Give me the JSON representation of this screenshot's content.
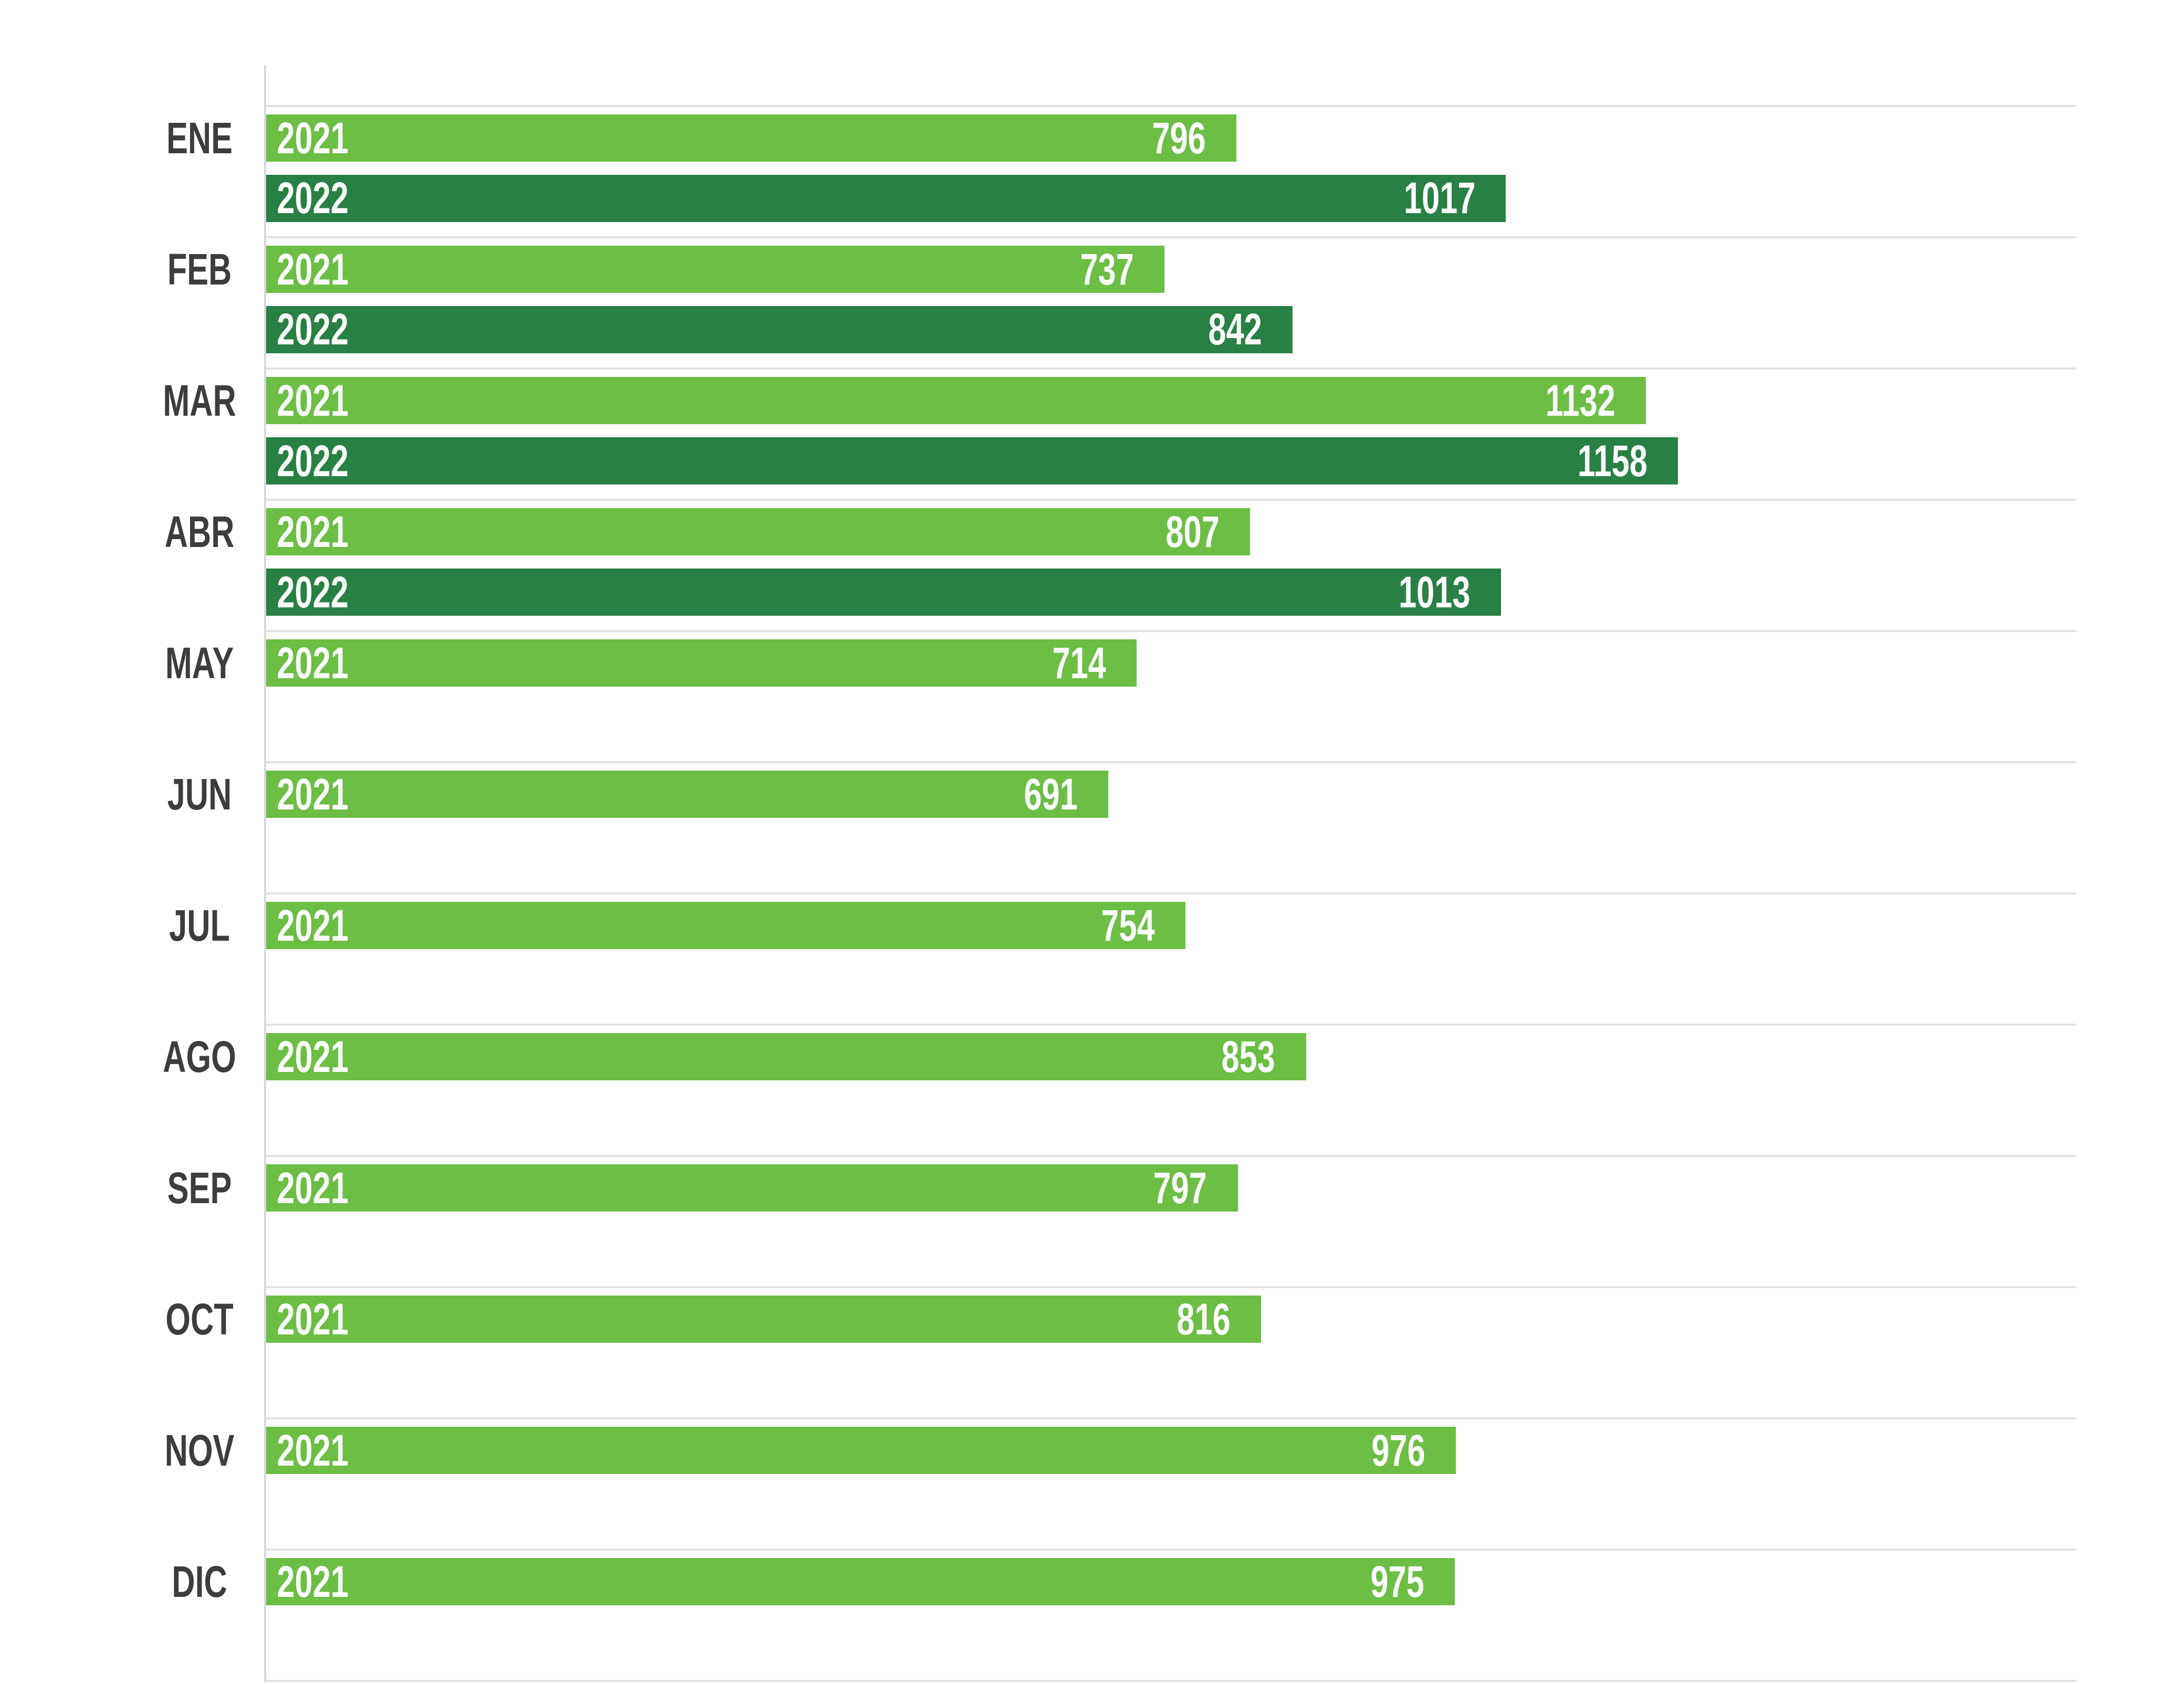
{
  "chart_data": {
    "type": "bar",
    "orientation": "horizontal",
    "title": "",
    "xlabel": "",
    "ylabel": "",
    "categories": [
      "ENE",
      "FEB",
      "MAR",
      "ABR",
      "MAY",
      "JUN",
      "JUL",
      "AGO",
      "SEP",
      "OCT",
      "NOV",
      "DIC"
    ],
    "series": [
      {
        "name": "2021",
        "color": "#6CBE45",
        "values": [
          796,
          737,
          1132,
          807,
          714,
          691,
          754,
          853,
          797,
          816,
          976,
          975
        ]
      },
      {
        "name": "2022",
        "color": "#298045",
        "values": [
          1017,
          842,
          1158,
          1013,
          null,
          null,
          null,
          null,
          null,
          null,
          null,
          null
        ]
      }
    ],
    "xlim": [
      0,
      1485
    ],
    "grid": "horizontal-category-separators",
    "legend": "none",
    "value_labels": "inside-end",
    "series_name_labels": "inside-start"
  },
  "colors": {
    "bar_2021": "#6CBE45",
    "bar_2022": "#298045",
    "month_label": "#3d3d3d",
    "gridline": "#e3e3e6",
    "axis_line": "#d8d8db",
    "background": "#ffffff",
    "bar_text": "#ffffff"
  }
}
